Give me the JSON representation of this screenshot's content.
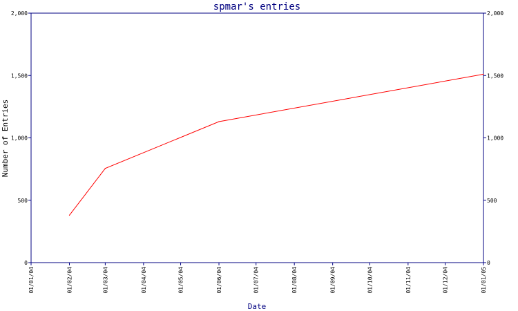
{
  "chart_data": {
    "type": "line",
    "title": "spmar's entries",
    "xlabel": "Date",
    "ylabel": "Number of Entries",
    "x_ticks": [
      "01/01/04",
      "01/02/04",
      "01/03/04",
      "01/04/04",
      "01/05/04",
      "01/06/04",
      "01/07/04",
      "01/08/04",
      "01/09/04",
      "01/10/04",
      "01/11/04",
      "01/12/04",
      "01/01/05"
    ],
    "y_ticks": [
      "0",
      "500",
      "1,000",
      "1,500",
      "2,000"
    ],
    "ylim": [
      0,
      2000
    ],
    "xlim": [
      "01/01/04",
      "01/01/05"
    ],
    "grid": false,
    "series": [
      {
        "x": [
          "01/02/04",
          "01/03/04",
          "01/06/04",
          "01/01/05"
        ],
        "y": [
          380,
          755,
          1130,
          1510
        ]
      }
    ],
    "colors": {
      "axis": "#000080",
      "line": "#ff0000",
      "tick_text": "#000000"
    }
  }
}
